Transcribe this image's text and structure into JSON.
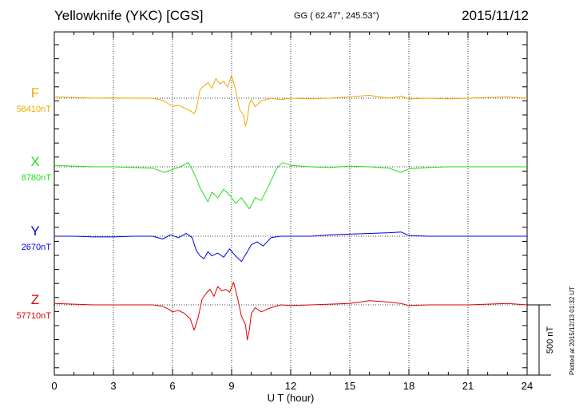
{
  "header": {
    "station": "Yellowknife (YKC)  [CGS]",
    "coords": "GG ( 62.47°, 245.53°)",
    "date": "2015/11/12"
  },
  "plotted_note": "Plotted at 2015/12/13 01:32 UT",
  "chart_data": {
    "type": "line",
    "title": "Yellowknife (YKC)  [CGS]",
    "xlabel": "U T (hour)",
    "xlim": [
      0,
      24
    ],
    "xticks": [
      "0",
      "3",
      "6",
      "9",
      "12",
      "15",
      "18",
      "21",
      "24"
    ],
    "scale_bar_label": "500 nT",
    "scale_bar_nT": 500,
    "grid": true,
    "series": [
      {
        "name": "F",
        "baseline_label": "58410nT",
        "color": "#f0a800",
        "x": [
          0,
          1,
          2,
          3,
          4,
          5,
          5.5,
          5.8,
          6.0,
          6.3,
          6.6,
          6.9,
          7.1,
          7.2,
          7.4,
          7.6,
          7.8,
          8.0,
          8.2,
          8.4,
          8.6,
          8.8,
          9.0,
          9.2,
          9.4,
          9.6,
          9.7,
          9.8,
          9.9,
          10.0,
          10.2,
          10.5,
          11.0,
          11.5,
          12,
          13,
          14,
          15,
          16,
          17,
          17.6,
          18,
          19,
          20,
          21,
          22,
          23,
          24
        ],
        "values": [
          10,
          5,
          0,
          2,
          0,
          0,
          -15,
          -40,
          -60,
          -50,
          -70,
          -90,
          -110,
          -80,
          60,
          90,
          110,
          70,
          140,
          100,
          120,
          80,
          160,
          60,
          -80,
          -120,
          -200,
          -150,
          -40,
          -10,
          -60,
          -20,
          0,
          -10,
          0,
          -5,
          0,
          10,
          20,
          0,
          15,
          -5,
          0,
          -5,
          0,
          5,
          10,
          0
        ]
      },
      {
        "name": "X",
        "baseline_label": "8780nT",
        "color": "#1ee01e",
        "x": [
          0,
          1,
          2,
          3,
          4,
          5,
          5.6,
          6.0,
          6.4,
          6.8,
          7.0,
          7.2,
          7.4,
          7.6,
          7.8,
          8.0,
          8.3,
          8.6,
          8.9,
          9.2,
          9.5,
          9.7,
          9.9,
          10.2,
          10.5,
          10.8,
          11.0,
          11.3,
          11.6,
          12,
          13,
          14,
          15,
          16,
          17,
          17.6,
          18,
          19,
          20,
          21,
          22,
          23,
          24
        ],
        "values": [
          10,
          5,
          0,
          0,
          -5,
          -10,
          -40,
          -20,
          0,
          30,
          -20,
          -80,
          -150,
          -200,
          -250,
          -180,
          -220,
          -160,
          -200,
          -260,
          -220,
          -260,
          -300,
          -220,
          -240,
          -160,
          -100,
          -10,
          30,
          10,
          0,
          -5,
          5,
          0,
          -10,
          -40,
          -15,
          -5,
          0,
          0,
          0,
          0,
          0
        ]
      },
      {
        "name": "Y",
        "baseline_label": "2670nT",
        "color": "#0000e0",
        "x": [
          0,
          1,
          2,
          3,
          4,
          5,
          5.5,
          5.9,
          6.3,
          6.7,
          7.0,
          7.2,
          7.4,
          7.6,
          7.8,
          8.0,
          8.3,
          8.6,
          8.9,
          9.2,
          9.5,
          9.8,
          10.0,
          10.3,
          10.6,
          11.0,
          11.5,
          12,
          13,
          14,
          15,
          16,
          17,
          17.6,
          18,
          19,
          20,
          21,
          22,
          23,
          24
        ],
        "values": [
          0,
          0,
          -5,
          -5,
          0,
          0,
          -20,
          10,
          -10,
          20,
          -10,
          -100,
          -140,
          -160,
          -110,
          -140,
          -120,
          -150,
          -90,
          -140,
          -180,
          -110,
          -60,
          -40,
          -70,
          -10,
          0,
          0,
          0,
          10,
          15,
          20,
          25,
          30,
          5,
          0,
          0,
          0,
          0,
          0,
          0
        ]
      },
      {
        "name": "Z",
        "baseline_label": "57710nT",
        "color": "#e00000",
        "x": [
          0,
          1,
          2,
          3,
          4,
          5,
          5.5,
          5.8,
          6.0,
          6.3,
          6.6,
          6.9,
          7.1,
          7.3,
          7.5,
          7.7,
          7.9,
          8.1,
          8.3,
          8.5,
          8.7,
          8.9,
          9.1,
          9.3,
          9.5,
          9.7,
          9.8,
          9.9,
          10.0,
          10.2,
          10.5,
          11.0,
          11.5,
          12,
          13,
          14,
          15,
          16,
          17,
          17.6,
          18,
          19,
          20,
          21,
          22,
          23,
          24
        ],
        "values": [
          10,
          5,
          0,
          0,
          0,
          0,
          -10,
          -30,
          -50,
          -40,
          -60,
          -100,
          -180,
          -90,
          40,
          80,
          110,
          60,
          130,
          100,
          110,
          90,
          160,
          50,
          -80,
          -140,
          -250,
          -180,
          -60,
          -20,
          -50,
          -20,
          0,
          -5,
          0,
          5,
          10,
          30,
          20,
          10,
          -5,
          0,
          0,
          0,
          5,
          10,
          0
        ]
      }
    ]
  }
}
